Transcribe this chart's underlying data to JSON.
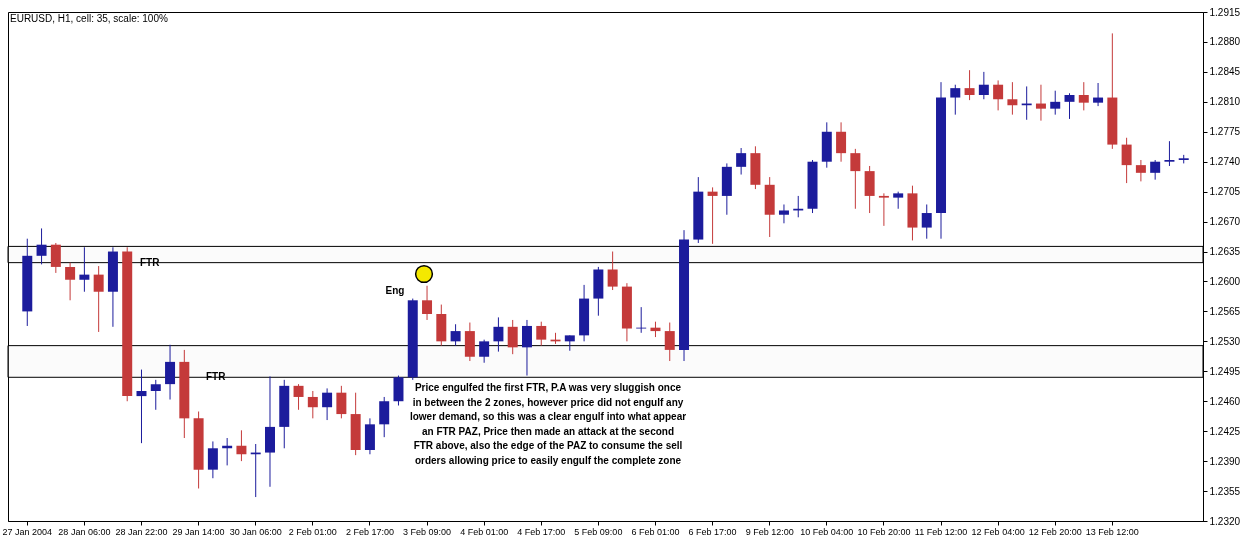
{
  "chart_data": {
    "type": "candlestick",
    "title": "EURUSD, H1, cell: 35, scale: 100%",
    "categories": [
      "27 Jan 2004",
      null,
      null,
      null,
      "28 Jan 06:00",
      null,
      null,
      null,
      "28 Jan 22:00",
      null,
      null,
      null,
      "29 Jan 14:00",
      null,
      null,
      null,
      "30 Jan 06:00",
      null,
      null,
      null,
      "2 Feb 01:00",
      null,
      null,
      null,
      "2 Feb 17:00",
      null,
      null,
      null,
      "3 Feb 09:00",
      null,
      null,
      null,
      "4 Feb 01:00",
      null,
      null,
      null,
      "4 Feb 17:00",
      null,
      null,
      null,
      "5 Feb 09:00",
      null,
      null,
      null,
      "6 Feb 01:00",
      null,
      null,
      null,
      "6 Feb 17:00",
      null,
      null,
      null,
      "9 Feb 12:00",
      null,
      null,
      null,
      "10 Feb 04:00",
      null,
      null,
      null,
      "10 Feb 20:00",
      null,
      null,
      null,
      "11 Feb 12:00",
      null,
      null,
      null,
      "12 Feb 04:00",
      null,
      null,
      null,
      "12 Feb 20:00",
      null,
      null,
      null,
      "13 Feb 12:00",
      null,
      null,
      null,
      null,
      null
    ],
    "ohlc": [
      [
        1.2565,
        1.265,
        1.2548,
        1.263
      ],
      [
        1.263,
        1.2662,
        1.262,
        1.2643
      ],
      [
        1.2643,
        1.2645,
        1.261,
        1.2617
      ],
      [
        1.2617,
        1.2622,
        1.2578,
        1.2602
      ],
      [
        1.2602,
        1.264,
        1.2588,
        1.2608
      ],
      [
        1.2608,
        1.2618,
        1.2541,
        1.2588
      ],
      [
        1.2588,
        1.264,
        1.2547,
        1.2635
      ],
      [
        1.2635,
        1.264,
        1.246,
        1.2466
      ],
      [
        1.2466,
        1.2497,
        1.2411,
        1.2472
      ],
      [
        1.2472,
        1.2485,
        1.245,
        1.248
      ],
      [
        1.248,
        1.2526,
        1.2462,
        1.2506
      ],
      [
        1.2506,
        1.252,
        1.2417,
        1.244
      ],
      [
        1.244,
        1.2448,
        1.2358,
        1.238
      ],
      [
        1.238,
        1.2413,
        1.237,
        1.2405
      ],
      [
        1.2405,
        1.2417,
        1.2385,
        1.2408
      ],
      [
        1.2408,
        1.2426,
        1.239,
        1.2398
      ],
      [
        1.2398,
        1.241,
        1.2348,
        1.24
      ],
      [
        1.24,
        1.2489,
        1.236,
        1.243
      ],
      [
        1.243,
        1.2485,
        1.2405,
        1.2478
      ],
      [
        1.2478,
        1.248,
        1.245,
        1.2465
      ],
      [
        1.2465,
        1.2472,
        1.244,
        1.2453
      ],
      [
        1.2453,
        1.2475,
        1.2438,
        1.247
      ],
      [
        1.247,
        1.2478,
        1.244,
        1.2445
      ],
      [
        1.2445,
        1.247,
        1.2397,
        1.2403
      ],
      [
        1.2403,
        1.244,
        1.2398,
        1.2433
      ],
      [
        1.2433,
        1.2465,
        1.2418,
        1.246
      ],
      [
        1.246,
        1.249,
        1.2455,
        1.2488
      ],
      [
        1.2488,
        1.258,
        1.2485,
        1.2578
      ],
      [
        1.2578,
        1.2595,
        1.2555,
        1.2562
      ],
      [
        1.2562,
        1.2573,
        1.2525,
        1.253
      ],
      [
        1.253,
        1.255,
        1.2525,
        1.2542
      ],
      [
        1.2542,
        1.2552,
        1.2507,
        1.2512
      ],
      [
        1.2512,
        1.2532,
        1.2505,
        1.253
      ],
      [
        1.253,
        1.2558,
        1.2518,
        1.2547
      ],
      [
        1.2547,
        1.2555,
        1.2515,
        1.2523
      ],
      [
        1.2523,
        1.2555,
        1.249,
        1.2548
      ],
      [
        1.2548,
        1.2553,
        1.2525,
        1.2532
      ],
      [
        1.2532,
        1.254,
        1.2527,
        1.253
      ],
      [
        1.253,
        1.2537,
        1.2519,
        1.2537
      ],
      [
        1.2537,
        1.2596,
        1.253,
        1.258
      ],
      [
        1.258,
        1.2617,
        1.256,
        1.2614
      ],
      [
        1.2614,
        1.2635,
        1.259,
        1.2594
      ],
      [
        1.2594,
        1.2598,
        1.253,
        1.2545
      ],
      [
        1.2545,
        1.257,
        1.254,
        1.2546
      ],
      [
        1.2546,
        1.2553,
        1.2535,
        1.2542
      ],
      [
        1.2542,
        1.2552,
        1.2507,
        1.252
      ],
      [
        1.252,
        1.266,
        1.2507,
        1.2649
      ],
      [
        1.2649,
        1.2722,
        1.2645,
        1.2705
      ],
      [
        1.2705,
        1.271,
        1.2644,
        1.27
      ],
      [
        1.27,
        1.2738,
        1.2678,
        1.2734
      ],
      [
        1.2734,
        1.2756,
        1.2725,
        1.275
      ],
      [
        1.275,
        1.2758,
        1.2708,
        1.2713
      ],
      [
        1.2713,
        1.2722,
        1.2652,
        1.2678
      ],
      [
        1.2678,
        1.269,
        1.2668,
        1.2683
      ],
      [
        1.2683,
        1.27,
        1.2675,
        1.2685
      ],
      [
        1.2685,
        1.2742,
        1.268,
        1.274
      ],
      [
        1.274,
        1.2786,
        1.2733,
        1.2775
      ],
      [
        1.2775,
        1.2786,
        1.274,
        1.275
      ],
      [
        1.275,
        1.2755,
        1.2685,
        1.2729
      ],
      [
        1.2729,
        1.2735,
        1.268,
        1.27
      ],
      [
        1.27,
        1.2703,
        1.2665,
        1.2698
      ],
      [
        1.2698,
        1.2705,
        1.2685,
        1.2703
      ],
      [
        1.2703,
        1.2712,
        1.2648,
        1.2663
      ],
      [
        1.2663,
        1.269,
        1.265,
        1.268
      ],
      [
        1.268,
        1.2833,
        1.265,
        1.2815
      ],
      [
        1.2815,
        1.283,
        1.2795,
        1.2826
      ],
      [
        1.2826,
        1.2847,
        1.2812,
        1.2818
      ],
      [
        1.2818,
        1.2845,
        1.2813,
        1.283
      ],
      [
        1.283,
        1.2835,
        1.28,
        1.2813
      ],
      [
        1.2813,
        1.2833,
        1.2795,
        1.2806
      ],
      [
        1.2806,
        1.2828,
        1.2789,
        1.2808
      ],
      [
        1.2808,
        1.283,
        1.2788,
        1.2802
      ],
      [
        1.2802,
        1.2823,
        1.2795,
        1.281
      ],
      [
        1.281,
        1.282,
        1.279,
        1.2818
      ],
      [
        1.2818,
        1.2833,
        1.28,
        1.2809
      ],
      [
        1.2809,
        1.2832,
        1.2805,
        1.2815
      ],
      [
        1.2815,
        1.289,
        1.2755,
        1.276
      ],
      [
        1.276,
        1.2768,
        1.2715,
        1.2736
      ],
      [
        1.2736,
        1.2742,
        1.2717,
        1.2727
      ],
      [
        1.2727,
        1.2742,
        1.2719,
        1.274
      ],
      [
        1.274,
        1.2764,
        1.2735,
        1.2742
      ],
      [
        1.2742,
        1.2748,
        1.2738,
        1.2744
      ]
    ],
    "colors": [
      "#1c1c9c",
      "#1c1c9c",
      "#c43a3a",
      "#c43a3a",
      "#1c1c9c",
      "#c43a3a",
      "#1c1c9c",
      "#c43a3a",
      "#1c1c9c",
      "#1c1c9c",
      "#1c1c9c",
      "#c43a3a",
      "#c43a3a",
      "#1c1c9c",
      "#1c1c9c",
      "#c43a3a",
      "#1c1c9c",
      "#1c1c9c",
      "#1c1c9c",
      "#c43a3a",
      "#c43a3a",
      "#1c1c9c",
      "#c43a3a",
      "#c43a3a",
      "#1c1c9c",
      "#1c1c9c",
      "#1c1c9c",
      "#1c1c9c",
      "#c43a3a",
      "#c43a3a",
      "#1c1c9c",
      "#c43a3a",
      "#1c1c9c",
      "#1c1c9c",
      "#c43a3a",
      "#1c1c9c",
      "#c43a3a",
      "#c43a3a",
      "#1c1c9c",
      "#1c1c9c",
      "#1c1c9c",
      "#c43a3a",
      "#c43a3a",
      "#1c1c9c",
      "#c43a3a",
      "#c43a3a",
      "#1c1c9c",
      "#1c1c9c",
      "#c43a3a",
      "#1c1c9c",
      "#1c1c9c",
      "#c43a3a",
      "#c43a3a",
      "#1c1c9c",
      "#1c1c9c",
      "#1c1c9c",
      "#1c1c9c",
      "#c43a3a",
      "#c43a3a",
      "#c43a3a",
      "#c43a3a",
      "#1c1c9c",
      "#c43a3a",
      "#1c1c9c",
      "#1c1c9c",
      "#1c1c9c",
      "#c43a3a",
      "#1c1c9c",
      "#c43a3a",
      "#c43a3a",
      "#1c1c9c",
      "#c43a3a",
      "#1c1c9c",
      "#1c1c9c",
      "#c43a3a",
      "#1c1c9c",
      "#c43a3a",
      "#c43a3a",
      "#c43a3a",
      "#1c1c9c",
      "#1c1c9c",
      "#1c1c9c"
    ],
    "ylim": [
      1.232,
      1.2915
    ],
    "yticks": [
      {
        "value": 1.232,
        "label": "1.2320"
      },
      1.2355,
      {
        "value": 1.239,
        "label": "1.2390"
      },
      1.2425,
      {
        "value": 1.246,
        "label": "1.2460"
      },
      1.2495,
      {
        "value": 1.253,
        "label": "1.2530"
      },
      1.2565,
      {
        "value": 1.26,
        "label": "1.2600"
      },
      1.2635,
      {
        "value": 1.267,
        "label": "1.2670"
      },
      1.2705,
      {
        "value": 1.274,
        "label": "1.2740"
      },
      1.2775,
      {
        "value": 1.281,
        "label": "1.2810"
      },
      1.2845,
      {
        "value": 1.288,
        "label": "1.2880"
      },
      1.2915
    ],
    "bands": [
      {
        "axis": "y",
        "from": 1.2622,
        "to": 1.2641,
        "label": "FTR"
      },
      {
        "axis": "y",
        "from": 1.2488,
        "to": 1.2525,
        "label": "FTR"
      }
    ],
    "annotations": [
      "Eng",
      "Price engulfed the first FTR, P.A was very sluggish once\nin between the 2 zones, however price did not engulf any\nlower demand, so this was a clear engulf into what appear\nan FTR PAZ, Price then made an attack at the second\nFTR above, also the edge of the PAZ to consume the sell\norders allowing price to easily engulf the complete zone"
    ],
    "grid": false
  }
}
